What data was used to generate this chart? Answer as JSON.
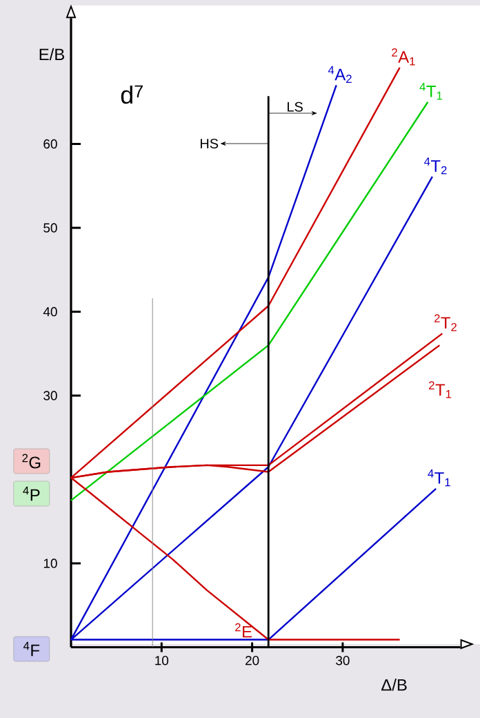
{
  "chart_data": {
    "type": "line",
    "title": "d$^{7}$",
    "xlabel": "Δ/B",
    "ylabel": "E/B",
    "xlim": [
      0,
      43
    ],
    "ylim": [
      0,
      75
    ],
    "xticks": [
      10,
      20,
      30
    ],
    "yticks": [
      10,
      30,
      40,
      50,
      60
    ],
    "series": [
      {
        "name": "$^{4}$A$_{2}$",
        "color": "#0000cc",
        "x": [
          0,
          21.8,
          29.3
        ],
        "values": [
          0.9,
          44.1,
          67.0
        ]
      },
      {
        "name": "$^{2}$A$_{1}$",
        "color": "#cc0000",
        "x": [
          0,
          21.8,
          36.3
        ],
        "values": [
          20.2,
          40.7,
          69.1
        ]
      },
      {
        "name": "$^{4}$T$_{1}$",
        "color": "#00cc00",
        "x": [
          0,
          21.8,
          39.4
        ],
        "values": [
          17.5,
          36.0,
          65.0
        ]
      },
      {
        "name": "$^{4}$T$_{2}$",
        "color": "#0000cc",
        "x": [
          0,
          21.8,
          39.9
        ],
        "values": [
          0.9,
          21.5,
          56.1
        ]
      },
      {
        "name": "$^{2}$T$_{2}$",
        "color": "#cc0000",
        "x": [
          0,
          4.1,
          11.2,
          15,
          21.8,
          41.0
        ],
        "values": [
          20.2,
          20.9,
          21.5,
          21.7,
          21.7,
          37.4
        ]
      },
      {
        "name": "$^{2}$T$_{1}$",
        "color": "#cc0000",
        "x": [
          0,
          4.1,
          11.2,
          15,
          17.3,
          21.8,
          40.7
        ],
        "values": [
          20.2,
          20.9,
          21.5,
          21.7,
          21.5,
          20.9,
          36.0
        ]
      },
      {
        "name": "$^{4}$T$_{1}$",
        "color": "#0000cc",
        "x": [
          0,
          21.8,
          40.3
        ],
        "values": [
          0.9,
          0.9,
          18.9
        ]
      },
      {
        "name": "$^{2}$E",
        "color": "#cc0000",
        "x": [
          0,
          2,
          7.4,
          11.2,
          15,
          21.8,
          36.3
        ],
        "values": [
          20.2,
          18.5,
          13.8,
          10.5,
          6.8,
          0.9,
          0.9
        ]
      },
      {
        "color": "#000000",
        "x": [
          21.8,
          21.8
        ],
        "values": [
          0,
          65.7
        ]
      },
      {
        "color": "#808080",
        "x": [
          9,
          9
        ],
        "values": [
          0,
          41.6
        ]
      }
    ],
    "annotations": [
      "HS",
      "LS",
      "$^{2}$G",
      "$^{4}$P",
      "$^{4}$F"
    ]
  }
}
